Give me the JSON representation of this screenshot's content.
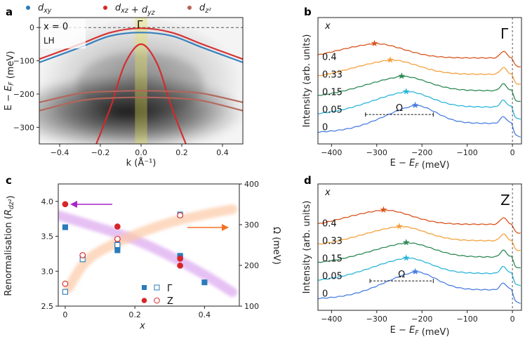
{
  "chart_data": [
    {
      "id": "a",
      "type": "heatmap",
      "panel_label": "a",
      "legend": [
        {
          "label": "d_xy",
          "color": "#2b7bba"
        },
        {
          "label": "d_xz + d_yz",
          "color": "#d62728"
        },
        {
          "label": "d_z²",
          "color": "#b5655a"
        }
      ],
      "xlabel": "k (Å⁻¹)",
      "ylabel": "E − E_F (meV)",
      "xlim": [
        -0.5,
        0.5
      ],
      "ylim": [
        -350,
        30
      ],
      "xticks": [
        -0.4,
        -0.2,
        0.0,
        0.2,
        0.4
      ],
      "xtick_labels": [
        "−0.4",
        "−0.2",
        "0.0",
        "0.2",
        "0.4"
      ],
      "yticks": [
        0,
        -100,
        -200,
        -300
      ],
      "ytick_labels": [
        "0",
        "−100",
        "−200",
        "−300"
      ],
      "annotations": {
        "composition": "x = 0",
        "polarization": "LH",
        "point": "Γ"
      },
      "dashed_line_y": 0,
      "highlight_band_k": [
        -0.03,
        0.03
      ],
      "bands": [
        {
          "name": "d_xy",
          "color": "#2b7bba",
          "k": [
            -0.5,
            -0.3,
            -0.15,
            0,
            0.15,
            0.3,
            0.5
          ],
          "E": [
            -105,
            -60,
            -25,
            -15,
            -25,
            -60,
            -105
          ]
        },
        {
          "name": "d_xz + d_yz",
          "color": "#d62728",
          "k": [
            -0.5,
            -0.3,
            -0.15,
            0,
            0.15,
            0.3,
            0.5
          ],
          "E": [
            -95,
            -50,
            -15,
            -2,
            -15,
            -50,
            -95
          ]
        },
        {
          "name": "d_xz + d_yz",
          "color": "#d62728",
          "k": [
            -0.22,
            -0.15,
            -0.08,
            0,
            0.08,
            0.15,
            0.22
          ],
          "E": [
            -350,
            -240,
            -110,
            -50,
            -110,
            -240,
            -350
          ]
        },
        {
          "name": "d_z²",
          "color": "#b5655a",
          "k": [
            -0.5,
            -0.3,
            -0.15,
            0,
            0.15,
            0.3,
            0.5
          ],
          "E": [
            -225,
            -198,
            -192,
            -190,
            -192,
            -198,
            -225
          ]
        },
        {
          "name": "d_z²",
          "color": "#b5655a",
          "k": [
            -0.5,
            -0.3,
            -0.15,
            0,
            0.15,
            0.3,
            0.5
          ],
          "E": [
            -250,
            -220,
            -212,
            -210,
            -212,
            -220,
            -250
          ]
        }
      ]
    },
    {
      "id": "b",
      "type": "line",
      "panel_label": "b",
      "point": "Γ",
      "xlabel": "E − E_F (meV)",
      "ylabel": "Intensity (arb. units)",
      "xlim": [
        -430,
        20
      ],
      "xticks": [
        -400,
        -300,
        -200,
        -100,
        0
      ],
      "xtick_labels": [
        "−400",
        "−300",
        "−200",
        "−100",
        "0"
      ],
      "legend_title": "x",
      "omega_label": "Ω",
      "omega_range": [
        -325,
        -175
      ],
      "series": [
        {
          "name": "0.4",
          "color": "#d9541e",
          "offset": 5,
          "peak": -305,
          "height": 0.6,
          "width": 90,
          "tail": 0.25
        },
        {
          "name": "0.33",
          "color": "#f5a03c",
          "offset": 4,
          "peak": -270,
          "height": 0.6,
          "width": 85,
          "tail": 0.3
        },
        {
          "name": "0.15",
          "color": "#2e8b57",
          "offset": 3,
          "peak": -245,
          "height": 0.6,
          "width": 80,
          "tail": 0.35
        },
        {
          "name": "0.05",
          "color": "#2bb5d9",
          "offset": 2,
          "peak": -235,
          "height": 0.65,
          "width": 75,
          "tail": 0.4
        },
        {
          "name": "0",
          "color": "#4a7ee0",
          "offset": 1,
          "peak": -215,
          "height": 0.75,
          "width": 65,
          "tail": 0.45
        }
      ]
    },
    {
      "id": "c",
      "type": "scatter",
      "panel_label": "c",
      "xlabel": "x",
      "ylabel": "Renormalisation (R_dz²)",
      "y2label": "Ω (meV)",
      "xlim": [
        -0.02,
        0.5
      ],
      "ylim": [
        2.5,
        4.25
      ],
      "y2lim": [
        100,
        400
      ],
      "xticks": [
        0,
        0.2,
        0.4
      ],
      "xtick_labels": [
        "0",
        "0.2",
        "0.4"
      ],
      "yticks": [
        2.5,
        3.0,
        3.5,
        4.0
      ],
      "ytick_labels": [
        "2.5",
        "3.0",
        "3.5",
        "4.0"
      ],
      "y2ticks": [
        100,
        200,
        300,
        400
      ],
      "y2tick_labels": [
        "100",
        "200",
        "300",
        "400"
      ],
      "legend": [
        {
          "label": "Γ",
          "marker": "square",
          "color": "#2b7bba"
        },
        {
          "label": "Z",
          "marker": "circle",
          "color": "#d62728"
        }
      ],
      "series": [
        {
          "name": "Γ R",
          "marker": "square",
          "filled": true,
          "color": "#2b7bba",
          "axis": "left",
          "x": [
            0,
            0.15,
            0.15,
            0.15,
            0.33,
            0.33,
            0.4
          ],
          "y": [
            3.63,
            3.3,
            3.35,
            3.38,
            3.2,
            3.22,
            2.84
          ]
        },
        {
          "name": "Z R",
          "marker": "circle",
          "filled": true,
          "color": "#d62728",
          "axis": "left",
          "x": [
            0,
            0.15,
            0.15,
            0.33,
            0.33
          ],
          "y": [
            3.96,
            3.64,
            3.46,
            3.18,
            3.08
          ]
        },
        {
          "name": "Γ Ω",
          "marker": "square",
          "filled": false,
          "color": "#2b7bba",
          "axis": "right",
          "x": [
            0,
            0.05,
            0.15,
            0.33
          ],
          "y": [
            135,
            215,
            250,
            325
          ]
        },
        {
          "name": "Z Ω",
          "marker": "circle",
          "filled": false,
          "color": "#d62728",
          "axis": "right",
          "x": [
            0,
            0.05,
            0.15,
            0.33
          ],
          "y": [
            155,
            225,
            265,
            323
          ]
        }
      ],
      "trend_R": {
        "x": [
          -0.02,
          0.1,
          0.2,
          0.3,
          0.4,
          0.48
        ],
        "y": [
          3.8,
          3.62,
          3.45,
          3.22,
          2.95,
          2.7
        ]
      },
      "trend_omega": {
        "x": [
          0.01,
          0.05,
          0.1,
          0.2,
          0.3,
          0.4,
          0.48
        ],
        "y": [
          145,
          200,
          235,
          275,
          305,
          325,
          338
        ]
      }
    },
    {
      "id": "d",
      "type": "line",
      "panel_label": "d",
      "point": "Z",
      "xlabel": "E − E_F (meV)",
      "ylabel": "Intensity (arb. units)",
      "xlim": [
        -430,
        20
      ],
      "xticks": [
        -400,
        -300,
        -200,
        -100,
        0
      ],
      "xtick_labels": [
        "−400",
        "−300",
        "−200",
        "−100",
        "0"
      ],
      "legend_title": "x",
      "omega_label": "Ω",
      "omega_range": [
        -315,
        -175
      ],
      "series": [
        {
          "name": "0.4",
          "color": "#d9541e",
          "offset": 5,
          "peak": -285,
          "height": 0.6,
          "width": 85,
          "tail": 0.25
        },
        {
          "name": "0.33",
          "color": "#f5a03c",
          "offset": 4,
          "peak": -250,
          "height": 0.6,
          "width": 80,
          "tail": 0.3
        },
        {
          "name": "0.15",
          "color": "#2e8b57",
          "offset": 3,
          "peak": -235,
          "height": 0.6,
          "width": 80,
          "tail": 0.35
        },
        {
          "name": "0.05",
          "color": "#2bb5d9",
          "offset": 2,
          "peak": -235,
          "height": 0.65,
          "width": 75,
          "tail": 0.4
        },
        {
          "name": "0",
          "color": "#4a7ee0",
          "offset": 1,
          "peak": -215,
          "height": 0.75,
          "width": 65,
          "tail": 0.45
        }
      ]
    }
  ]
}
